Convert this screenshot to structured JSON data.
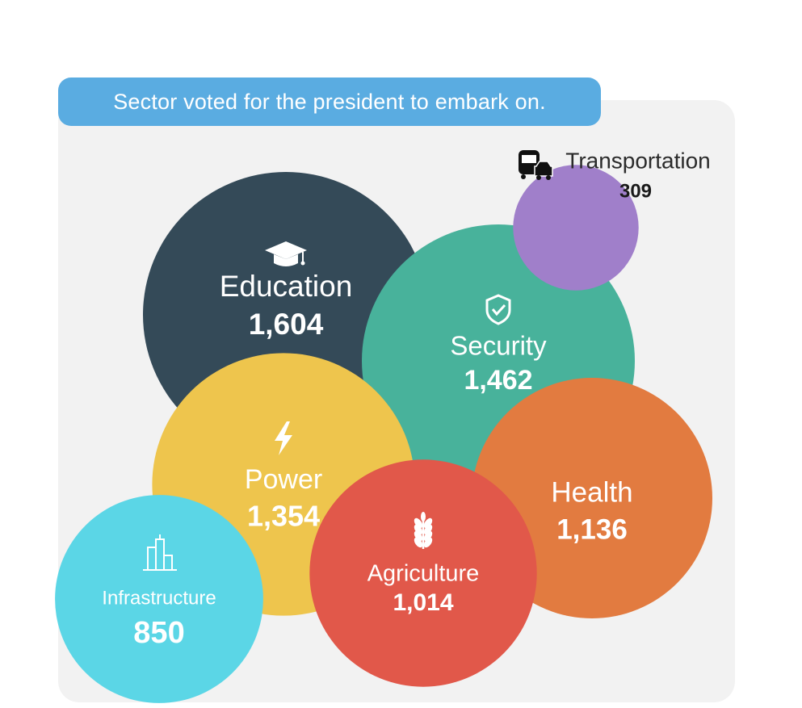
{
  "title": "Sector voted for the president to embark on.",
  "colors": {
    "background": "#ffffff",
    "panel": "#f2f2f2",
    "title_pill": "#5aace1"
  },
  "chart_data": {
    "type": "bubble",
    "title": "Sector voted for the president to embark on.",
    "series": [
      {
        "name": "Education",
        "value": 1604,
        "value_label": "1,604",
        "color": "#344a58",
        "icon": "graduation-cap-icon"
      },
      {
        "name": "Security",
        "value": 1462,
        "value_label": "1,462",
        "color": "#48b29b",
        "icon": "shield-check-icon"
      },
      {
        "name": "Power",
        "value": 1354,
        "value_label": "1,354",
        "color": "#eec54d",
        "icon": "lightning-bolt-icon"
      },
      {
        "name": "Health",
        "value": 1136,
        "value_label": "1,136",
        "color": "#e27b40",
        "icon": ""
      },
      {
        "name": "Agriculture",
        "value": 1014,
        "value_label": "1,014",
        "color": "#e1584a",
        "icon": "wheat-icon"
      },
      {
        "name": "Infrastructure",
        "value": 850,
        "value_label": "850",
        "color": "#5bd6e6",
        "icon": "buildings-icon"
      },
      {
        "name": "Transportation",
        "value": 309,
        "value_label": "309",
        "color": "#a07fca",
        "icon": "bus-car-icon"
      }
    ]
  }
}
